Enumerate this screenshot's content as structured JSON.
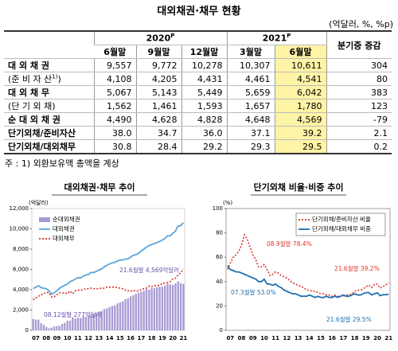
{
  "title": "대외채권·채무 현황",
  "unit": "(억달러, %, %p)",
  "table": {
    "years": [
      {
        "year": "2020",
        "sup": "P"
      },
      {
        "year": "2021",
        "sup": "P"
      }
    ],
    "change": "분기중 증감",
    "months": [
      "6월말",
      "9월말",
      "12월말",
      "3월말",
      "6월말"
    ],
    "rows": [
      {
        "label": "대 외 채 권",
        "values": [
          "9,557",
          "9,772",
          "10,278",
          "10,307",
          "10,611"
        ],
        "change": "304"
      },
      {
        "label": {
          "text": "(준 비 자 산",
          "sup": "1)",
          "tail": ")"
        },
        "values": [
          "4,108",
          "4,205",
          "4,431",
          "4,461",
          "4,541"
        ],
        "change": "80"
      },
      {
        "label": "대 외 채 무",
        "values": [
          "5,067",
          "5,143",
          "5,449",
          "5,659",
          "6,042"
        ],
        "change": "383"
      },
      {
        "label": "(단 기 외 채)",
        "values": [
          "1,562",
          "1,461",
          "1,593",
          "1,657",
          "1,780"
        ],
        "change": "123"
      },
      {
        "label": "순 대 외 채 권",
        "values": [
          "4,490",
          "4,628",
          "4,828",
          "4,648",
          "4,569"
        ],
        "change": "-79"
      },
      {
        "label": "단기외채/준비자산",
        "values": [
          "38.0",
          "34.7",
          "36.0",
          "37.1",
          "39.2"
        ],
        "change": "2.1"
      },
      {
        "label": "단기외채/대외채무",
        "values": [
          "30.8",
          "28.4",
          "29.2",
          "29.3",
          "29.5"
        ],
        "change": "0.2"
      }
    ]
  },
  "note": "주 : 1) 외환보유액 총액을 계상",
  "chart_data": [
    {
      "type": "combo",
      "title": "대외채권·채무 추이",
      "y_unit": "(억달러)",
      "legend": "upper left",
      "categories": [
        null,
        "07",
        null,
        null,
        null,
        "08",
        null,
        null,
        null,
        "09",
        null,
        null,
        null,
        "10",
        null,
        null,
        null,
        "11",
        null,
        null,
        null,
        "12",
        null,
        null,
        null,
        "13",
        null,
        null,
        null,
        "14",
        null,
        null,
        null,
        "15",
        null,
        null,
        null,
        "16",
        null,
        null,
        null,
        "17",
        null,
        null,
        null,
        "18",
        null,
        null,
        null,
        "19",
        null,
        null,
        null,
        "20",
        null,
        null,
        null,
        "21"
      ],
      "ylim": [
        0,
        12000
      ],
      "yticks": [
        0,
        {
          "value": 2000,
          "label": "2,000"
        },
        {
          "value": 4000,
          "label": "4,000"
        },
        {
          "value": 6000,
          "label": "6,000"
        },
        {
          "value": 8000,
          "label": "8,000"
        },
        {
          "value": 10000,
          "label": "10,000"
        },
        {
          "value": 12000,
          "label": "12,000"
        }
      ],
      "series": [
        {
          "name": "순대외채권",
          "kind": "bar",
          "color": "#a99bd3",
          "values": [
            1100,
            1050,
            1050,
            700,
            550,
            350,
            200,
            277,
            380,
            400,
            450,
            630,
            750,
            950,
            950,
            1300,
            1150,
            1250,
            1200,
            1360,
            1350,
            1400,
            1550,
            1600,
            1700,
            1850,
            1900,
            2100,
            2150,
            2300,
            2400,
            2450,
            2650,
            2750,
            2850,
            3050,
            3150,
            3350,
            3450,
            3600,
            3700,
            3800,
            3900,
            4050,
            4000,
            4150,
            4150,
            4250,
            4300,
            4300,
            4400,
            4600,
            4500,
            4490,
            4628,
            4828,
            4648,
            4569
          ]
        },
        {
          "name": "대외채권",
          "kind": "line",
          "style": "solid",
          "color": "#5aa5dc",
          "values": [
            4100,
            4250,
            4400,
            4200,
            4150,
            4100,
            3900,
            3570,
            3700,
            3900,
            4150,
            4300,
            4450,
            4550,
            4800,
            4900,
            5050,
            5200,
            5150,
            5350,
            5450,
            5500,
            5700,
            5700,
            5800,
            5950,
            6050,
            6250,
            6400,
            6550,
            6650,
            6700,
            6850,
            6900,
            6950,
            7000,
            7050,
            7200,
            7400,
            7450,
            7600,
            7800,
            8000,
            8200,
            8350,
            8450,
            8550,
            8650,
            8750,
            8900,
            9050,
            9300,
            9300,
            9557,
            9772,
            10278,
            10307,
            10611
          ]
        },
        {
          "name": "대외채무",
          "kind": "line",
          "style": "dotted",
          "color": "#d9302a",
          "values": [
            3000,
            3200,
            3350,
            3500,
            3600,
            3750,
            3700,
            3290,
            3320,
            3500,
            3700,
            3670,
            3700,
            3600,
            3850,
            3600,
            3900,
            3950,
            3950,
            3990,
            4100,
            4100,
            4150,
            4100,
            4100,
            4100,
            4150,
            4150,
            4250,
            4250,
            4250,
            4250,
            4200,
            4150,
            4100,
            3950,
            3900,
            3850,
            3950,
            3850,
            3900,
            4000,
            4100,
            4150,
            4350,
            4300,
            4400,
            4400,
            4450,
            4600,
            4650,
            4700,
            4800,
            5067,
            5143,
            5449,
            5659,
            6042
          ]
        }
      ],
      "annotations": [
        {
          "text": "21.6월말 4,569억달러",
          "color": "#6a4fae"
        },
        {
          "text": "08.12월말 277억달러",
          "color": "#6a4fae"
        }
      ]
    },
    {
      "type": "line",
      "title": "단기외채 비율·비중 추이",
      "y_unit": "(%)",
      "legend": "upper right",
      "categories": [
        null,
        "07",
        null,
        null,
        null,
        "08",
        null,
        null,
        null,
        "09",
        null,
        null,
        null,
        "10",
        null,
        null,
        null,
        "11",
        null,
        null,
        null,
        "12",
        null,
        null,
        null,
        "13",
        null,
        null,
        null,
        "14",
        null,
        null,
        null,
        "15",
        null,
        null,
        null,
        "16",
        null,
        null,
        null,
        "17",
        null,
        null,
        null,
        "18",
        null,
        null,
        null,
        "19",
        null,
        null,
        null,
        "20",
        null,
        null,
        null,
        "21"
      ],
      "ylim": [
        0,
        100
      ],
      "yticks": [
        0,
        20,
        40,
        60,
        80,
        100
      ],
      "series": [
        {
          "name": "단기외채/준비자산 비율",
          "style": "dotted",
          "color": "#e0332b",
          "values": [
            50,
            55,
            60,
            62,
            65,
            70,
            78.4,
            75,
            68,
            62,
            58,
            52,
            52,
            54,
            50,
            45,
            46,
            48,
            47,
            45,
            44,
            43,
            41,
            39,
            38,
            37,
            36,
            35,
            33,
            33,
            32,
            32,
            31,
            30,
            30,
            29,
            29,
            28,
            29,
            28,
            28,
            28,
            29,
            29,
            30,
            32,
            33,
            33,
            34,
            36,
            37,
            35,
            38,
            38.0,
            34.7,
            36.0,
            37.1,
            39.2
          ]
        },
        {
          "name": "단기외채/대외채무 비중",
          "style": "solid",
          "color": "#1f6fad",
          "values": [
            53.0,
            50,
            49,
            48,
            48,
            47,
            46,
            45,
            44,
            43,
            42,
            40,
            40,
            42,
            38,
            38,
            37,
            38,
            36,
            35,
            33,
            32,
            31,
            30,
            30,
            29,
            28,
            28,
            28,
            29,
            28,
            27,
            28,
            27,
            27,
            28,
            27,
            27,
            28,
            27,
            28,
            29,
            28,
            28,
            29,
            30,
            29,
            29,
            30,
            31,
            31,
            29,
            30,
            30.8,
            28.4,
            29.2,
            29.3,
            29.5
          ]
        }
      ],
      "annotations": [
        {
          "text": "08.9월말 78.4%",
          "color": "#e0332b"
        },
        {
          "text": "21.6월말 39.2%",
          "color": "#e0332b"
        },
        {
          "text": "07.3월말 53.0%",
          "color": "#1f6fad"
        },
        {
          "text": "21.6월말 29.5%",
          "color": "#1f6fad"
        }
      ]
    }
  ]
}
